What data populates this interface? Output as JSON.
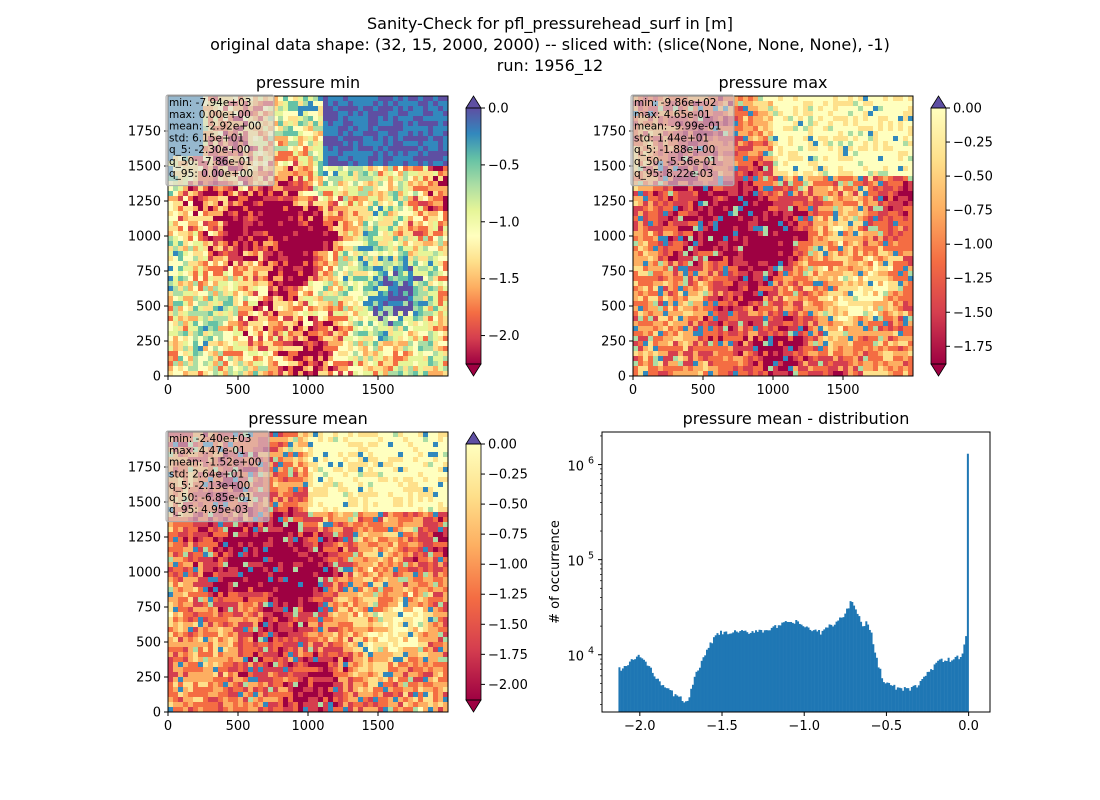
{
  "suptitle": {
    "line1": "Sanity-Check for pfl_pressurehead_surf in [m]",
    "line2": "original data shape: (32, 15, 2000, 2000) -- sliced with: (slice(None, None, None), -1)",
    "line3": "run: 1956_12"
  },
  "chart_data": [
    {
      "type": "heatmap",
      "title": "pressure min",
      "xlim": [
        0,
        2000
      ],
      "ylim": [
        0,
        2000
      ],
      "xticks": [
        "0",
        "500",
        "1000",
        "1500"
      ],
      "yticks": [
        "0",
        "250",
        "500",
        "750",
        "1000",
        "1250",
        "1500",
        "1750"
      ],
      "colormap": "Spectral",
      "colorbar_range": [
        -2.25,
        0.0
      ],
      "colorbar_ticks": [
        "0.0",
        "−0.5",
        "−1.0",
        "−1.5",
        "−2.0"
      ],
      "colorbar_extend": "both",
      "stats": [
        "min: -7.94e+03",
        "max: 0.00e+00",
        "mean: -2.92e+00",
        "std: 6.15e+01",
        "q_5: -2.30e+00",
        "q_50: -7.86e-01",
        "q_95: 0.00e+00"
      ]
    },
    {
      "type": "heatmap",
      "title": "pressure max",
      "xlim": [
        0,
        2000
      ],
      "ylim": [
        0,
        2000
      ],
      "xticks": [
        "0",
        "500",
        "1000",
        "1500"
      ],
      "yticks": [
        "0",
        "250",
        "500",
        "750",
        "1000",
        "1250",
        "1500",
        "1750"
      ],
      "colormap": "Spectral",
      "colorbar_range": [
        -1.88,
        0.0
      ],
      "colorbar_ticks": [
        "0.00",
        "−0.25",
        "−0.50",
        "−0.75",
        "−1.00",
        "−1.25",
        "−1.50",
        "−1.75"
      ],
      "colorbar_extend": "both",
      "stats": [
        "min: -9.86e+02",
        "max: 4.65e-01",
        "mean: -9.99e-01",
        "std: 1.44e+01",
        "q_5: -1.88e+00",
        "q_50: -5.56e-01",
        "q_95: 8.22e-03"
      ]
    },
    {
      "type": "heatmap",
      "title": "pressure mean",
      "xlim": [
        0,
        2000
      ],
      "ylim": [
        0,
        2000
      ],
      "xticks": [
        "0",
        "500",
        "1000",
        "1500"
      ],
      "yticks": [
        "0",
        "250",
        "500",
        "750",
        "1000",
        "1250",
        "1500",
        "1750"
      ],
      "colormap": "Spectral",
      "colorbar_range": [
        -2.13,
        0.0
      ],
      "colorbar_ticks": [
        "0.00",
        "−0.25",
        "−0.50",
        "−0.75",
        "−1.00",
        "−1.25",
        "−1.50",
        "−1.75",
        "−2.00"
      ],
      "colorbar_extend": "both",
      "stats": [
        "min: -2.40e+03",
        "max: 4.47e-01",
        "mean: -1.52e+00",
        "std: 2.64e+01",
        "q_5: -2.13e+00",
        "q_50: -6.85e-01",
        "q_95: 4.95e-03"
      ]
    },
    {
      "type": "bar",
      "title": "pressure mean - distribution",
      "ylabel": "# of occurrence",
      "yscale": "log",
      "xlim": [
        -2.23,
        0.13
      ],
      "ylim": [
        2500,
        2200000
      ],
      "xticks": [
        -2.0,
        -1.5,
        -1.0,
        -0.5,
        0.0
      ],
      "xtick_labels": [
        "−2.0",
        "−1.5",
        "−1.0",
        "−0.5",
        "0.0"
      ],
      "yticks": [
        10000,
        100000,
        1000000
      ],
      "ytick_labels": [
        "10",
        "10",
        "10"
      ],
      "ytick_exponents": [
        "4",
        "5",
        "6"
      ],
      "color": "#1f77b4",
      "bins": {
        "start": -2.13,
        "end": 0.0,
        "count": 200
      },
      "shape_points": [
        [
          -2.13,
          7000
        ],
        [
          -2.08,
          7600
        ],
        [
          -2.03,
          9200
        ],
        [
          -2.01,
          9800
        ],
        [
          -1.98,
          9000
        ],
        [
          -1.93,
          6800
        ],
        [
          -1.88,
          5300
        ],
        [
          -1.83,
          4300
        ],
        [
          -1.78,
          3700
        ],
        [
          -1.73,
          3300
        ],
        [
          -1.7,
          3500
        ],
        [
          -1.67,
          5500
        ],
        [
          -1.63,
          8000
        ],
        [
          -1.6,
          10000
        ],
        [
          -1.57,
          13000
        ],
        [
          -1.53,
          16500
        ],
        [
          -1.5,
          17000
        ],
        [
          -1.45,
          16800
        ],
        [
          -1.4,
          17500
        ],
        [
          -1.35,
          17000
        ],
        [
          -1.3,
          18000
        ],
        [
          -1.25,
          18000
        ],
        [
          -1.2,
          19000
        ],
        [
          -1.15,
          20000
        ],
        [
          -1.1,
          22000
        ],
        [
          -1.05,
          22000
        ],
        [
          -1.0,
          20000
        ],
        [
          -0.95,
          18000
        ],
        [
          -0.9,
          17000
        ],
        [
          -0.85,
          20000
        ],
        [
          -0.8,
          22000
        ],
        [
          -0.75,
          27000
        ],
        [
          -0.71,
          38000
        ],
        [
          -0.68,
          30000
        ],
        [
          -0.65,
          20000
        ],
        [
          -0.62,
          22000
        ],
        [
          -0.59,
          16000
        ],
        [
          -0.56,
          9000
        ],
        [
          -0.52,
          5500
        ],
        [
          -0.48,
          4800
        ],
        [
          -0.43,
          4400
        ],
        [
          -0.38,
          4300
        ],
        [
          -0.33,
          4500
        ],
        [
          -0.28,
          5500
        ],
        [
          -0.23,
          7000
        ],
        [
          -0.18,
          8500
        ],
        [
          -0.13,
          8800
        ],
        [
          -0.08,
          9000
        ],
        [
          -0.04,
          10000
        ],
        [
          -0.015,
          16000
        ],
        [
          -0.004,
          1300000
        ]
      ]
    }
  ]
}
